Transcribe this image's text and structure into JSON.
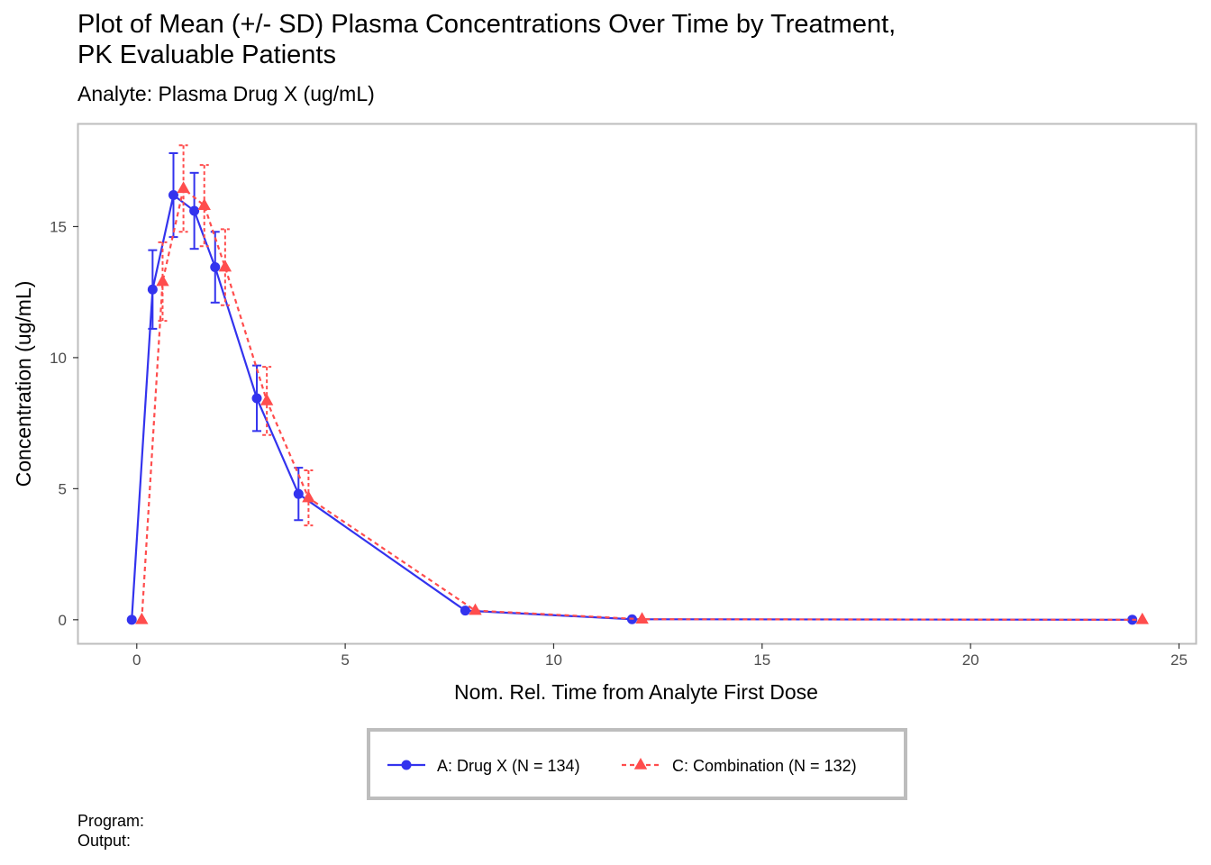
{
  "page": {
    "title_line1": "Plot of Mean (+/- SD) Plasma Concentrations Over Time by Treatment,",
    "title_line2": "PK Evaluable Patients",
    "subtitle": "Analyte: Plasma Drug X (ug/mL)",
    "caption_program": "Program:",
    "caption_output": "Output:"
  },
  "chart_data": {
    "type": "line",
    "xlabel": "Nom. Rel. Time from Analyte First Dose",
    "ylabel": "Concentration (ug/mL)",
    "xlim": [
      -1.4,
      25.4
    ],
    "ylim": [
      -0.9,
      18.9
    ],
    "xticks": [
      0,
      5,
      10,
      15,
      20,
      25
    ],
    "yticks": [
      0,
      5,
      10,
      15
    ],
    "grid": false,
    "legend_position": "bottom",
    "series": [
      {
        "name": "A: Drug X (N = 134)",
        "color": "#3333ee",
        "marker": "circle",
        "linestyle": "solid",
        "x": [
          0,
          0.5,
          1,
          1.5,
          2,
          3,
          4,
          8,
          12,
          24
        ],
        "y": [
          0,
          12.6,
          16.2,
          15.6,
          13.45,
          8.45,
          4.8,
          0.35,
          0.02,
          0.0
        ],
        "sd": [
          0,
          1.5,
          1.6,
          1.45,
          1.35,
          1.25,
          1.0,
          0,
          0,
          0
        ]
      },
      {
        "name": "C: Combination (N = 132)",
        "color": "#ff4d4d",
        "marker": "triangle",
        "linestyle": "dashed",
        "x": [
          0,
          0.5,
          1,
          1.5,
          2,
          3,
          4,
          8,
          12,
          24
        ],
        "y": [
          0,
          12.9,
          16.45,
          15.8,
          13.45,
          8.35,
          4.65,
          0.35,
          0.02,
          0.0
        ],
        "sd": [
          0,
          1.5,
          1.65,
          1.55,
          1.45,
          1.3,
          1.05,
          0,
          0,
          0
        ]
      }
    ]
  }
}
